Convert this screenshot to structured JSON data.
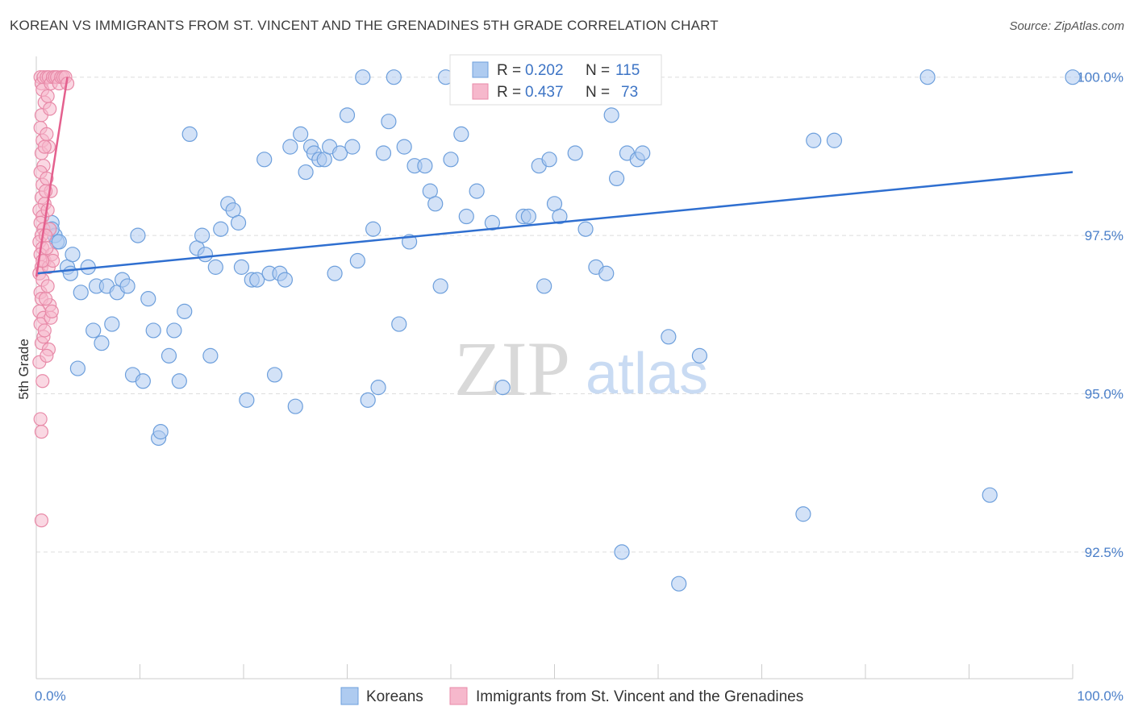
{
  "title": "KOREAN VS IMMIGRANTS FROM ST. VINCENT AND THE GRENADINES 5TH GRADE CORRELATION CHART",
  "source": "Source: ZipAtlas.com",
  "watermark": {
    "zip": "ZIP",
    "atlas": "atlas"
  },
  "colors": {
    "blue_fill": "#aecbf0",
    "blue_stroke": "#6d9fdc",
    "blue_line": "#2f6fd0",
    "pink_fill": "#f6b8cc",
    "pink_stroke": "#e88aa8",
    "pink_line": "#e4608e",
    "grid": "#dddddd",
    "tick_text": "#4a7fc9"
  },
  "legend": {
    "rows": [
      {
        "r_label": "R =",
        "r_value": "0.202",
        "n_label": "N =",
        "n_value": "115"
      },
      {
        "r_label": "R =",
        "r_value": "0.437",
        "n_label": "N =",
        "n_value": "73"
      }
    ]
  },
  "bottom_legend": [
    "Koreans",
    "Immigrants from St. Vincent and the Grenadines"
  ],
  "chart_data": {
    "type": "scatter",
    "title": "KOREAN VS IMMIGRANTS FROM ST. VINCENT AND THE GRENADINES 5TH GRADE CORRELATION CHART",
    "xlabel": "",
    "ylabel": "5th Grade",
    "xlim": [
      0,
      100
    ],
    "ylim": [
      90.5,
      100.2
    ],
    "x_tick_labels": [
      "0.0%",
      "100.0%"
    ],
    "y_ticks": [
      92.5,
      95.0,
      97.5,
      100.0
    ],
    "y_tick_labels": [
      "92.5%",
      "95.0%",
      "97.5%",
      "100.0%"
    ],
    "grid": true,
    "legend_position": "top-center",
    "series": [
      {
        "name": "Koreans",
        "r": 0.202,
        "n": 115,
        "trend": {
          "x": [
            0,
            100
          ],
          "y": [
            96.9,
            98.5
          ]
        },
        "points": [
          [
            1.5,
            97.7
          ],
          [
            1.8,
            97.5
          ],
          [
            2.0,
            97.4
          ],
          [
            3.0,
            97.0
          ],
          [
            3.3,
            96.9
          ],
          [
            3.5,
            97.2
          ],
          [
            4.0,
            95.4
          ],
          [
            4.3,
            96.6
          ],
          [
            5.0,
            97.0
          ],
          [
            5.5,
            96.0
          ],
          [
            5.8,
            96.7
          ],
          [
            6.3,
            95.8
          ],
          [
            6.8,
            96.7
          ],
          [
            7.3,
            96.1
          ],
          [
            7.8,
            96.6
          ],
          [
            8.3,
            96.8
          ],
          [
            8.8,
            96.7
          ],
          [
            9.3,
            95.3
          ],
          [
            9.8,
            97.5
          ],
          [
            10.3,
            95.2
          ],
          [
            10.8,
            96.5
          ],
          [
            11.3,
            96.0
          ],
          [
            11.8,
            94.3
          ],
          [
            12.0,
            94.4
          ],
          [
            12.8,
            95.6
          ],
          [
            13.3,
            96.0
          ],
          [
            13.8,
            95.2
          ],
          [
            14.3,
            96.3
          ],
          [
            14.8,
            99.1
          ],
          [
            15.5,
            97.3
          ],
          [
            16.0,
            97.5
          ],
          [
            16.3,
            97.2
          ],
          [
            16.8,
            95.6
          ],
          [
            17.3,
            97.0
          ],
          [
            17.8,
            97.6
          ],
          [
            18.5,
            98.0
          ],
          [
            19.0,
            97.9
          ],
          [
            19.5,
            97.7
          ],
          [
            19.8,
            97.0
          ],
          [
            20.3,
            94.9
          ],
          [
            20.8,
            96.8
          ],
          [
            21.3,
            96.8
          ],
          [
            22.0,
            98.7
          ],
          [
            22.5,
            96.9
          ],
          [
            23.0,
            95.3
          ],
          [
            23.5,
            96.9
          ],
          [
            24.0,
            96.8
          ],
          [
            24.5,
            98.9
          ],
          [
            25.0,
            94.8
          ],
          [
            25.5,
            99.1
          ],
          [
            26.0,
            98.5
          ],
          [
            26.5,
            98.9
          ],
          [
            26.8,
            98.8
          ],
          [
            27.3,
            98.7
          ],
          [
            27.8,
            98.7
          ],
          [
            28.3,
            98.9
          ],
          [
            28.8,
            96.9
          ],
          [
            29.3,
            98.8
          ],
          [
            30.0,
            99.4
          ],
          [
            30.5,
            98.9
          ],
          [
            31.0,
            97.1
          ],
          [
            31.5,
            100.0
          ],
          [
            32.0,
            94.9
          ],
          [
            32.5,
            97.6
          ],
          [
            33.0,
            95.1
          ],
          [
            33.5,
            98.8
          ],
          [
            34.0,
            99.3
          ],
          [
            34.5,
            100.0
          ],
          [
            35.0,
            96.1
          ],
          [
            35.5,
            98.9
          ],
          [
            36.0,
            97.4
          ],
          [
            36.5,
            98.6
          ],
          [
            37.5,
            98.6
          ],
          [
            38.0,
            98.2
          ],
          [
            38.5,
            98.0
          ],
          [
            39.0,
            96.7
          ],
          [
            39.5,
            100.0
          ],
          [
            40.0,
            98.7
          ],
          [
            41.0,
            99.1
          ],
          [
            41.5,
            97.8
          ],
          [
            42.5,
            98.2
          ],
          [
            44.0,
            97.7
          ],
          [
            45.0,
            95.1
          ],
          [
            45.5,
            99.7
          ],
          [
            47.0,
            97.8
          ],
          [
            47.5,
            97.8
          ],
          [
            48.5,
            98.6
          ],
          [
            49.0,
            96.7
          ],
          [
            49.5,
            98.7
          ],
          [
            50.0,
            98.0
          ],
          [
            50.5,
            97.8
          ],
          [
            51.0,
            100.0
          ],
          [
            52.0,
            98.8
          ],
          [
            53.0,
            97.6
          ],
          [
            54.0,
            97.0
          ],
          [
            55.0,
            96.9
          ],
          [
            55.5,
            99.4
          ],
          [
            56.0,
            98.4
          ],
          [
            56.5,
            92.5
          ],
          [
            57.0,
            98.8
          ],
          [
            58.0,
            98.7
          ],
          [
            61.0,
            95.9
          ],
          [
            62.0,
            92.0
          ],
          [
            64.0,
            95.6
          ],
          [
            74.0,
            93.1
          ],
          [
            75.0,
            99.0
          ],
          [
            77.0,
            99.0
          ],
          [
            86.0,
            100.0
          ],
          [
            92.0,
            93.4
          ],
          [
            100.0,
            100.0
          ],
          [
            1.5,
            97.6
          ],
          [
            2.2,
            97.4
          ],
          [
            58.5,
            98.8
          ]
        ]
      },
      {
        "name": "Immigrants from St. Vincent and the Grenadines",
        "r": 0.437,
        "n": 73,
        "trend": {
          "x": [
            0,
            3.0
          ],
          "y": [
            96.85,
            100.0
          ]
        },
        "points": [
          [
            0.4,
            100.0
          ],
          [
            0.5,
            99.9
          ],
          [
            0.6,
            99.8
          ],
          [
            0.7,
            100.0
          ],
          [
            0.8,
            99.6
          ],
          [
            0.5,
            99.4
          ],
          [
            0.4,
            99.2
          ],
          [
            0.6,
            99.0
          ],
          [
            0.5,
            98.8
          ],
          [
            0.7,
            98.6
          ],
          [
            0.4,
            98.5
          ],
          [
            0.6,
            98.3
          ],
          [
            0.5,
            98.1
          ],
          [
            0.8,
            98.0
          ],
          [
            0.3,
            97.9
          ],
          [
            0.6,
            97.8
          ],
          [
            0.4,
            97.7
          ],
          [
            0.7,
            97.6
          ],
          [
            0.5,
            97.5
          ],
          [
            0.3,
            97.4
          ],
          [
            0.6,
            97.3
          ],
          [
            0.4,
            97.2
          ],
          [
            0.8,
            97.1
          ],
          [
            0.5,
            97.0
          ],
          [
            0.3,
            96.9
          ],
          [
            0.6,
            96.8
          ],
          [
            0.4,
            96.6
          ],
          [
            0.5,
            96.5
          ],
          [
            0.3,
            96.3
          ],
          [
            0.7,
            96.2
          ],
          [
            0.4,
            96.1
          ],
          [
            0.5,
            95.8
          ],
          [
            0.3,
            95.5
          ],
          [
            0.6,
            95.2
          ],
          [
            0.4,
            94.6
          ],
          [
            0.5,
            94.4
          ],
          [
            0.5,
            93.0
          ],
          [
            1.0,
            100.0
          ],
          [
            1.2,
            100.0
          ],
          [
            1.4,
            99.9
          ],
          [
            1.6,
            100.0
          ],
          [
            1.8,
            100.0
          ],
          [
            2.0,
            100.0
          ],
          [
            2.2,
            99.9
          ],
          [
            2.4,
            100.0
          ],
          [
            2.6,
            100.0
          ],
          [
            2.8,
            100.0
          ],
          [
            3.0,
            99.9
          ],
          [
            1.1,
            99.7
          ],
          [
            1.3,
            99.5
          ],
          [
            1.0,
            99.1
          ],
          [
            1.2,
            98.9
          ],
          [
            1.0,
            98.4
          ],
          [
            1.4,
            98.2
          ],
          [
            1.1,
            97.9
          ],
          [
            1.3,
            97.6
          ],
          [
            1.5,
            97.2
          ],
          [
            1.2,
            97.0
          ],
          [
            1.1,
            96.7
          ],
          [
            1.3,
            96.4
          ],
          [
            1.4,
            96.2
          ],
          [
            1.2,
            95.7
          ],
          [
            0.9,
            97.5
          ],
          [
            1.0,
            97.3
          ],
          [
            0.8,
            98.9
          ],
          [
            0.9,
            98.2
          ],
          [
            1.6,
            97.1
          ],
          [
            0.7,
            95.9
          ],
          [
            0.9,
            96.5
          ],
          [
            1.5,
            96.3
          ],
          [
            0.6,
            97.1
          ],
          [
            0.8,
            96.0
          ],
          [
            1.0,
            95.6
          ]
        ]
      }
    ]
  }
}
